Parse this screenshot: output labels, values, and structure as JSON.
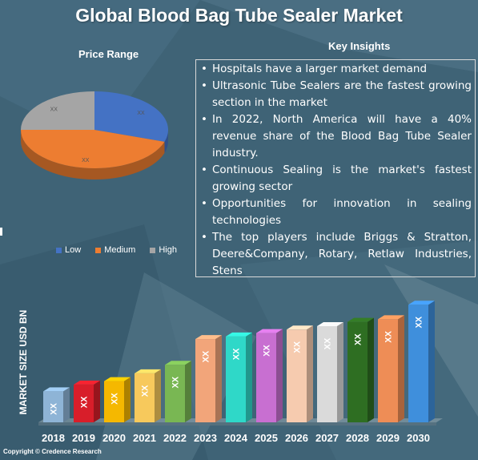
{
  "title": "Global Blood Bag Tube Sealer Market",
  "copyright": "Copyright © Credence Research",
  "key_insights": {
    "title": "Key Insights",
    "items": [
      "Hospitals have a larger market demand",
      "Ultrasonic Tube Sealers are the fastest growing section in the market",
      "In 2022, North America will have a 40% revenue share of the Blood Bag Tube Sealer industry.",
      "Continuous Sealing is the market's fastest growing sector",
      "Opportunities for innovation in sealing technologies",
      "The top players include Briggs & Stratton, Deere&Company, Rotary, Retlaw Industries, Stens"
    ]
  },
  "colors": {
    "background": "#3f6376",
    "low": "#4472c4",
    "medium": "#ed7d31",
    "high": "#a5a5a5"
  },
  "chart_data": [
    {
      "type": "pie",
      "title": "Price Range",
      "categories": [
        "Low",
        "Medium",
        "High"
      ],
      "values": [
        30,
        45,
        25
      ],
      "data_labels": [
        "XX",
        "XX",
        "XX"
      ],
      "legend": "bottom",
      "colors": [
        "#4472c4",
        "#ed7d31",
        "#a5a5a5"
      ]
    },
    {
      "type": "bar",
      "ylabel": "MARKET SIZE USD BN",
      "categories": [
        "2018",
        "2019",
        "2020",
        "2021",
        "2022",
        "2023",
        "2024",
        "2025",
        "2026",
        "2027",
        "2028",
        "2029",
        "2030"
      ],
      "values": [
        36,
        44,
        48,
        57,
        67,
        97,
        100,
        104,
        108,
        112,
        117,
        120,
        137
      ],
      "data_labels": [
        "XX",
        "XX",
        "XX",
        "XX",
        "XX",
        "XX",
        "XX",
        "XX",
        "XX",
        "XX",
        "XX",
        "XX",
        "XX"
      ],
      "bar_colors": [
        "#8eb4d6",
        "#d81e2a",
        "#f5b800",
        "#f7c95c",
        "#79b753",
        "#f2a57a",
        "#2fd8c8",
        "#c86fd1",
        "#f6cbaf",
        "#dadada",
        "#2e6e22",
        "#ee8d56",
        "#3f8fdc"
      ],
      "ylim": [
        0,
        140
      ]
    }
  ]
}
